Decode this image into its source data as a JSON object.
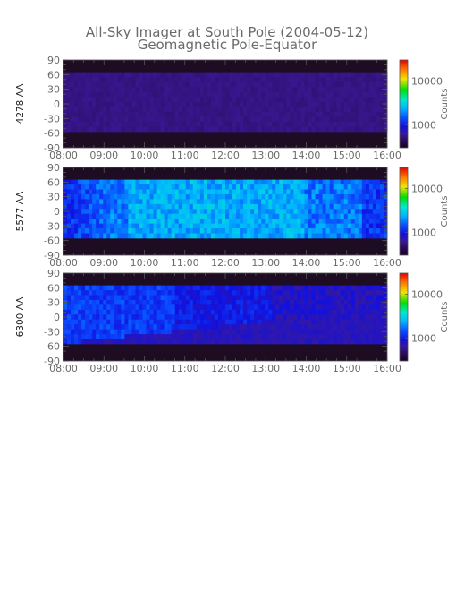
{
  "figure": {
    "title": "All-Sky Imager at South Pole (2004-05-12)",
    "subtitle": "Geomagnetic Pole-Equator"
  },
  "colors": {
    "frame": "#555555",
    "text": "#6a6a6a",
    "colormap": [
      "#1a0028",
      "#2a0a55",
      "#3a1a9a",
      "#1010e0",
      "#0a4dff",
      "#00b4ff",
      "#00e8d0",
      "#00e000",
      "#f2e400",
      "#ff7a00",
      "#e80000"
    ]
  },
  "chart_data": [
    {
      "type": "heatmap",
      "ylabel": "4278 AA",
      "x_ticks": [
        "08:00",
        "09:00",
        "10:00",
        "11:00",
        "12:00",
        "13:00",
        "14:00",
        "15:00",
        "16:00"
      ],
      "y_ticks": [
        "90",
        "60",
        "30",
        "0",
        "-30",
        "-60",
        "-90"
      ],
      "ylim": [
        -90,
        90
      ],
      "data_lat_range": [
        -57,
        65
      ],
      "colorbar": {
        "label": "Counts",
        "ticks": [
          "10000",
          "1000"
        ],
        "scale": "log"
      },
      "description_level": 0.16
    },
    {
      "type": "heatmap",
      "ylabel": "5577 AA",
      "x_ticks": [
        "08:00",
        "09:00",
        "10:00",
        "11:00",
        "12:00",
        "13:00",
        "14:00",
        "15:00",
        "16:00"
      ],
      "y_ticks": [
        "90",
        "60",
        "30",
        "0",
        "-30",
        "-60",
        "-90"
      ],
      "ylim": [
        -90,
        90
      ],
      "data_lat_range": [
        -55,
        65
      ],
      "colorbar": {
        "label": "Counts",
        "ticks": [
          "10000",
          "1000"
        ],
        "scale": "log"
      },
      "description_level": 0.45
    },
    {
      "type": "heatmap",
      "ylabel": "6300 AA",
      "x_ticks": [
        "08:00",
        "09:00",
        "10:00",
        "11:00",
        "12:00",
        "13:00",
        "14:00",
        "15:00",
        "16:00"
      ],
      "y_ticks": [
        "90",
        "60",
        "30",
        "0",
        "-30",
        "-60",
        "-90"
      ],
      "ylim": [
        -90,
        90
      ],
      "data_lat_range": [
        -55,
        65
      ],
      "colorbar": {
        "label": "Counts",
        "ticks": [
          "10000",
          "1000"
        ],
        "scale": "log"
      },
      "description_level": 0.33
    }
  ]
}
